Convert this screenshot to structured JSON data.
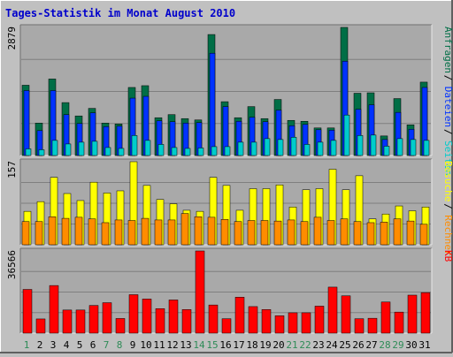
{
  "title": "Tages-Statistik im Monat August 2010",
  "colors": {
    "background": "#c0c0c0",
    "panel": "#a9a9a9",
    "grid": "#7f7f7f",
    "title": "#0000cc",
    "anfragen": "#006e46",
    "dateien": "#0032ff",
    "seiten": "#00cccc",
    "besuche": "#ffff00",
    "rechner": "#ff8c00",
    "kb": "#ff0000",
    "weekday_label": "#006e46",
    "weekend_label": "#2e8b57"
  },
  "chart_data": [
    {
      "type": "bar",
      "panel": "top",
      "ymax_label": "2879",
      "legend": [
        "Anfragen",
        "Dateien",
        "Seiten"
      ],
      "categories": [
        "1",
        "2",
        "3",
        "4",
        "5",
        "6",
        "7",
        "8",
        "9",
        "10",
        "11",
        "12",
        "13",
        "14",
        "15",
        "16",
        "17",
        "18",
        "19",
        "20",
        "21",
        "22",
        "23",
        "24",
        "25",
        "26",
        "27",
        "28",
        "29",
        "30",
        "31"
      ],
      "weekend_days": [
        "1",
        "7",
        "8",
        "14",
        "15",
        "21",
        "22",
        "28",
        "29"
      ],
      "series": [
        {
          "name": "Anfragen",
          "values": [
            1580,
            730,
            1720,
            1190,
            890,
            1060,
            730,
            710,
            1530,
            1570,
            850,
            920,
            830,
            800,
            2720,
            1210,
            850,
            1100,
            830,
            1260,
            790,
            770,
            620,
            620,
            2880,
            1400,
            1410,
            440,
            1280,
            690,
            1650
          ]
        },
        {
          "name": "Dateien",
          "values": [
            1460,
            560,
            1460,
            920,
            720,
            960,
            650,
            660,
            1290,
            1330,
            780,
            760,
            730,
            740,
            2300,
            1100,
            770,
            860,
            760,
            1020,
            670,
            700,
            580,
            570,
            2120,
            1040,
            1140,
            360,
            970,
            590,
            1530
          ]
        },
        {
          "name": "Seiten",
          "values": [
            150,
            130,
            340,
            260,
            300,
            320,
            180,
            160,
            450,
            340,
            250,
            180,
            160,
            170,
            200,
            200,
            300,
            300,
            380,
            360,
            410,
            250,
            300,
            340,
            910,
            450,
            460,
            210,
            380,
            360,
            340
          ]
        }
      ]
    },
    {
      "type": "bar",
      "panel": "middle",
      "ymax_label": "157",
      "legend": [
        "Besuche",
        "Rechner"
      ],
      "categories": [
        "1",
        "2",
        "3",
        "4",
        "5",
        "6",
        "7",
        "8",
        "9",
        "10",
        "11",
        "12",
        "13",
        "14",
        "15",
        "16",
        "17",
        "18",
        "19",
        "20",
        "21",
        "22",
        "23",
        "24",
        "25",
        "26",
        "27",
        "28",
        "29",
        "30",
        "31"
      ],
      "series": [
        {
          "name": "Besuche",
          "values": [
            62,
            80,
            125,
            95,
            82,
            116,
            96,
            100,
            154,
            110,
            84,
            76,
            64,
            62,
            125,
            110,
            64,
            104,
            104,
            111,
            70,
            102,
            104,
            140,
            102,
            128,
            48,
            57,
            72,
            63,
            70
          ]
        },
        {
          "name": "Rechner",
          "values": [
            43,
            43,
            52,
            49,
            51,
            48,
            41,
            46,
            45,
            49,
            46,
            46,
            58,
            52,
            51,
            47,
            43,
            45,
            45,
            44,
            46,
            43,
            51,
            45,
            48,
            43,
            41,
            42,
            48,
            44,
            38
          ]
        }
      ]
    },
    {
      "type": "bar",
      "panel": "bottom",
      "ymax_label": "36566",
      "legend": [
        "KB"
      ],
      "categories": [
        "1",
        "2",
        "3",
        "4",
        "5",
        "6",
        "7",
        "8",
        "9",
        "10",
        "11",
        "12",
        "13",
        "14",
        "15",
        "16",
        "17",
        "18",
        "19",
        "20",
        "21",
        "22",
        "23",
        "24",
        "25",
        "26",
        "27",
        "28",
        "29",
        "30",
        "31"
      ],
      "series": [
        {
          "name": "KB",
          "values": [
            19100,
            6200,
            20800,
            10100,
            10100,
            12100,
            13300,
            6400,
            16800,
            14900,
            10700,
            14500,
            10300,
            35900,
            12300,
            6300,
            15700,
            11600,
            10300,
            7600,
            8900,
            8900,
            11800,
            20100,
            16300,
            6300,
            6500,
            13600,
            9200,
            16600,
            17700
          ]
        }
      ]
    }
  ]
}
